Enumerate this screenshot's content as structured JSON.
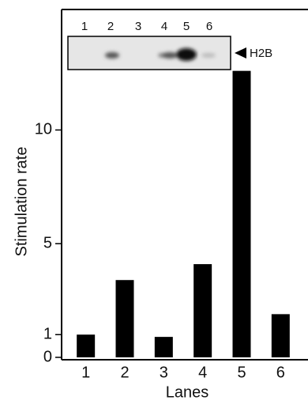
{
  "chart_data": {
    "type": "bar",
    "categories": [
      "1",
      "2",
      "3",
      "4",
      "5",
      "6"
    ],
    "values": [
      1.0,
      3.4,
      0.9,
      4.1,
      12.6,
      1.9
    ],
    "color": "#000000",
    "ylim": [
      0,
      15.3
    ],
    "yticks": [
      0,
      1,
      5,
      10
    ],
    "x_label": "Lanes",
    "y_label": "Stimulation rate",
    "inset_lanes": [
      "1",
      "2",
      "3",
      "4",
      "5",
      "6"
    ],
    "inset_label": "H2B"
  }
}
